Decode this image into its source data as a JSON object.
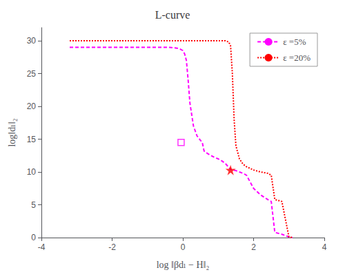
{
  "chart_data": {
    "type": "line",
    "title": "L-curve",
    "x_label": "log ‖βdₗ − H‖₂",
    "y_label": "log‖dₗ‖₂",
    "xlim": [
      -4,
      4
    ],
    "ylim": [
      0,
      32
    ],
    "xticks": [
      -4,
      -2,
      0,
      2,
      4
    ],
    "yticks": [
      0,
      5,
      10,
      15,
      20,
      25,
      30
    ],
    "grid": false,
    "legend": "upper right",
    "series": [
      {
        "name": "ε =5%",
        "type": "line",
        "color": "#FF00FF",
        "line_style": "dashed",
        "x": [
          -3.2,
          -3.0,
          -2.8,
          -2.6,
          -2.4,
          -2.2,
          -2.0,
          -1.8,
          -1.6,
          -1.4,
          -1.2,
          -1.0,
          -0.8,
          -0.6,
          -0.4,
          -0.2,
          -0.1,
          0.0,
          0.05,
          0.1,
          0.15,
          0.2,
          0.3,
          0.4,
          0.5,
          0.55,
          0.6,
          0.7,
          0.8,
          0.9,
          1.0,
          1.1,
          1.2,
          1.3,
          1.35,
          1.4,
          1.5,
          1.6,
          1.7,
          1.8,
          2.0,
          2.2,
          2.4,
          2.5,
          2.6,
          2.8,
          3.0,
          3.1
        ],
        "values": [
          29.0,
          29.0,
          29.0,
          29.0,
          29.0,
          29.0,
          29.0,
          29.0,
          29.0,
          29.0,
          29.0,
          29.0,
          29.0,
          29.0,
          29.0,
          28.9,
          28.8,
          28.5,
          28.0,
          27.0,
          24.0,
          20.5,
          17.0,
          15.5,
          14.8,
          14.5,
          13.2,
          12.8,
          12.5,
          12.2,
          12.0,
          11.7,
          11.3,
          10.7,
          10.4,
          10.3,
          10.2,
          10.0,
          9.8,
          9.5,
          7.5,
          6.5,
          5.8,
          5.5,
          0.8,
          0.5,
          0.1,
          0.0
        ]
      },
      {
        "name": "ε =20%",
        "type": "line",
        "color": "#FF0000",
        "line_style": "dotted",
        "x": [
          -3.2,
          -3.0,
          -2.5,
          -2.0,
          -1.5,
          -1.0,
          -0.5,
          0.0,
          0.5,
          1.0,
          1.2,
          1.3,
          1.35,
          1.4,
          1.45,
          1.5,
          1.6,
          1.7,
          1.8,
          2.0,
          2.2,
          2.4,
          2.5,
          2.6,
          2.8,
          3.0,
          3.1
        ],
        "values": [
          30.0,
          30.0,
          30.0,
          30.0,
          30.0,
          30.0,
          30.0,
          30.0,
          30.0,
          30.0,
          30.0,
          29.8,
          29.2,
          25.0,
          18.0,
          14.0,
          12.0,
          11.2,
          10.8,
          10.3,
          10.0,
          9.8,
          9.5,
          5.8,
          5.5,
          0.1,
          0.0
        ]
      },
      {
        "type": "scatter",
        "color": "#FF00FF",
        "marker": "open_square",
        "x": [
          -0.05
        ],
        "values": [
          14.5
        ]
      },
      {
        "type": "scatter",
        "color": "#FF0000",
        "marker": "star",
        "x": [
          1.35
        ],
        "values": [
          10.3
        ]
      }
    ]
  }
}
